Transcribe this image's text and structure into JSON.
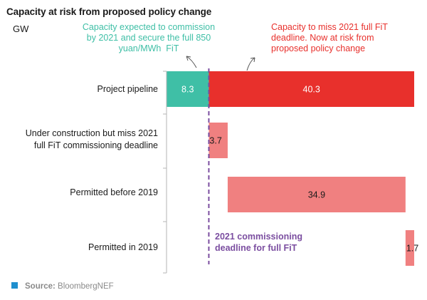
{
  "chart_data": {
    "type": "bar",
    "subtype": "waterfall",
    "title": "Capacity at risk from proposed policy change",
    "unit_label": "GW",
    "categories": [
      "Project pipeline",
      "Under construction but miss 2021 full FiT commissioning deadline",
      "Permitted before 2019",
      "Permitted in 2019"
    ],
    "category_lines": [
      [
        "Project pipeline"
      ],
      [
        "Under construction but miss 2021",
        "full FiT commissioning deadline"
      ],
      [
        "Permitted before 2019"
      ],
      [
        "Permitted in 2019"
      ]
    ],
    "bars": [
      {
        "category": "Project pipeline",
        "start": 0,
        "value": 8.3,
        "label": "8.3",
        "color": "#3fbfa6",
        "label_color": "#ffffff"
      },
      {
        "category": "Project pipeline",
        "start": 8.3,
        "value": 40.3,
        "label": "40.3",
        "color": "#e8302c",
        "label_color": "#ffffff"
      },
      {
        "category": "Under construction but miss 2021 full FiT commissioning deadline",
        "start": 8.3,
        "value": 3.7,
        "label": "3.7",
        "color": "#f08080",
        "label_color": "#1a1a1a"
      },
      {
        "category": "Permitted before 2019",
        "start": 12.0,
        "value": 34.9,
        "label": "34.9",
        "color": "#f08080",
        "label_color": "#1a1a1a"
      },
      {
        "category": "Permitted in 2019",
        "start": 46.9,
        "value": 1.7,
        "label": "1.7",
        "color": "#f08080",
        "label_color": "#1a1a1a"
      }
    ],
    "xlim": [
      0,
      48.6
    ],
    "reference_line": {
      "x": 8.3,
      "label_lines": [
        "2021 commissioning",
        "deadline for full FiT"
      ],
      "color": "#7b4ea0"
    },
    "annotations": {
      "left": {
        "lines": [
          "Capacity expected to commission",
          "by 2021 and secure the full 850",
          "yuan/MWh  FiT"
        ],
        "color": "#3fbfa6"
      },
      "right": {
        "lines": [
          "Capacity to miss 2021 full FiT",
          "deadline. Now at risk from",
          "proposed policy change"
        ],
        "color": "#e8302c"
      }
    },
    "source": {
      "label": "Source:",
      "text": "BloombergNEF",
      "marker_color": "#1f8fce"
    }
  }
}
